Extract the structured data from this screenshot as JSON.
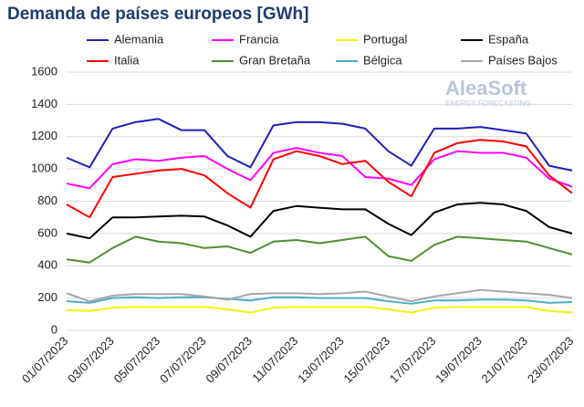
{
  "chart_data": {
    "type": "line",
    "title": "Demanda de países europeos [GWh]",
    "watermark": "AleaSoft",
    "watermark_subtitle": "ENERGY FORECASTING",
    "categories": [
      "01/07/2023",
      null,
      "03/07/2023",
      null,
      "05/07/2023",
      null,
      "07/07/2023",
      null,
      "09/07/2023",
      null,
      "11/07/2023",
      null,
      "13/07/2023",
      null,
      "15/07/2023",
      null,
      "17/07/2023",
      null,
      "19/07/2023",
      null,
      "21/07/2023",
      null,
      "23/07/2023"
    ],
    "series": [
      {
        "name": "Alemania",
        "color": "#1f1fbf",
        "values": [
          1070,
          1010,
          1250,
          1290,
          1310,
          1240,
          1240,
          1080,
          1010,
          1270,
          1290,
          1290,
          1280,
          1250,
          1110,
          1020,
          1250,
          1250,
          1260,
          1240,
          1220,
          1020,
          990
        ]
      },
      {
        "name": "Francia",
        "color": "#ff00ff",
        "values": [
          910,
          880,
          1030,
          1060,
          1050,
          1070,
          1080,
          1000,
          930,
          1100,
          1130,
          1100,
          1080,
          950,
          940,
          900,
          1060,
          1110,
          1100,
          1100,
          1070,
          940,
          890
        ]
      },
      {
        "name": "Portugal",
        "color": "#f2f200",
        "values": [
          125,
          120,
          140,
          145,
          145,
          145,
          145,
          130,
          110,
          140,
          145,
          145,
          145,
          145,
          130,
          110,
          140,
          145,
          145,
          145,
          145,
          120,
          110
        ]
      },
      {
        "name": "España",
        "color": "#000000",
        "values": [
          600,
          570,
          700,
          700,
          705,
          710,
          705,
          650,
          580,
          740,
          770,
          760,
          750,
          750,
          660,
          590,
          730,
          780,
          790,
          780,
          740,
          640,
          600
        ]
      },
      {
        "name": "Italia",
        "color": "#ff0000",
        "values": [
          780,
          700,
          950,
          970,
          990,
          1000,
          960,
          850,
          760,
          1060,
          1110,
          1080,
          1030,
          1050,
          920,
          830,
          1100,
          1160,
          1180,
          1170,
          1140,
          960,
          850
        ]
      },
      {
        "name": "Gran Bretaña",
        "color": "#4e8f2f",
        "values": [
          440,
          420,
          510,
          580,
          550,
          540,
          510,
          520,
          480,
          550,
          560,
          540,
          560,
          580,
          460,
          430,
          530,
          580,
          570,
          560,
          550,
          510,
          470
        ]
      },
      {
        "name": "Bélgica",
        "color": "#4bacc6",
        "values": [
          180,
          170,
          200,
          205,
          200,
          205,
          205,
          195,
          185,
          205,
          205,
          200,
          200,
          200,
          180,
          165,
          185,
          185,
          190,
          190,
          185,
          170,
          175
        ]
      },
      {
        "name": "Países Bajos",
        "color": "#a6a6a6",
        "values": [
          230,
          180,
          215,
          225,
          225,
          225,
          210,
          190,
          225,
          230,
          230,
          225,
          230,
          240,
          210,
          180,
          210,
          230,
          250,
          240,
          230,
          220,
          200
        ]
      }
    ],
    "ylim": [
      0,
      1600
    ],
    "yticks": [
      0,
      200,
      400,
      600,
      800,
      1000,
      1200,
      1400,
      1600
    ],
    "grid": true
  }
}
